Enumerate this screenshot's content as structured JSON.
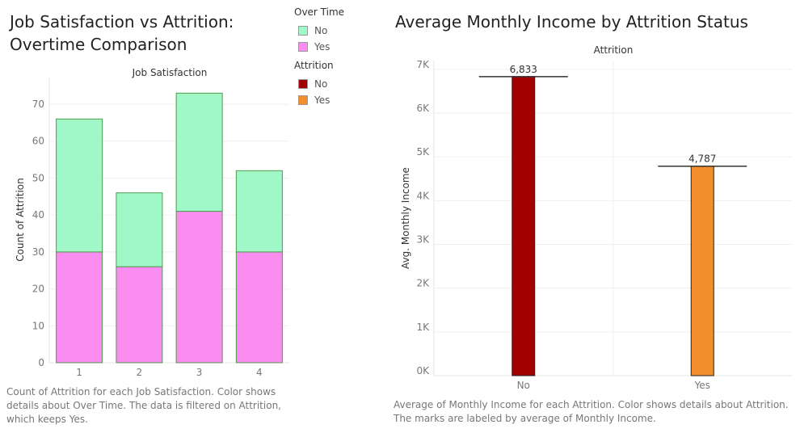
{
  "left_title": "Job Satisfaction vs Attrition: Overtime Comparison",
  "right_title": "Average Monthly Income by Attrition Status",
  "left_caption": "Count of Attrition for each Job Satisfaction.  Color shows details about Over Time. The data is filtered on Attrition, which keeps Yes.",
  "right_caption": "Average of Monthly Income for each Attrition.  Color shows details about Attrition.  The marks are labeled by average of Monthly Income.",
  "legend": {
    "overtime": {
      "title": "Over Time",
      "items": [
        {
          "label": "No",
          "color": "#a0f7c8"
        },
        {
          "label": "Yes",
          "color": "#fb8cf0"
        }
      ]
    },
    "attrition": {
      "title": "Attrition",
      "items": [
        {
          "label": "No",
          "color": "#a30000"
        },
        {
          "label": "Yes",
          "color": "#f28e2b"
        }
      ]
    }
  },
  "chart_data": [
    {
      "type": "bar",
      "stacked": true,
      "header": "Job Satisfaction",
      "ylabel": "Count of Attrition",
      "categories": [
        "1",
        "2",
        "3",
        "4"
      ],
      "series": [
        {
          "name": "Yes",
          "values": [
            30,
            26,
            41,
            30
          ],
          "color": "#fb8cf0"
        },
        {
          "name": "No",
          "values": [
            36,
            20,
            32,
            22
          ],
          "color": "#a0f7c8"
        }
      ],
      "yticks": [
        0,
        10,
        20,
        30,
        40,
        50,
        60,
        70
      ],
      "ylim": [
        0,
        77
      ],
      "grid": true
    },
    {
      "type": "bar",
      "header": "Attrition",
      "ylabel": "Avg. Monthly Income",
      "categories": [
        "No",
        "Yes"
      ],
      "values": [
        6833,
        4787
      ],
      "data_labels": [
        "6,833",
        "4,787"
      ],
      "colors": [
        "#a30000",
        "#f28e2b"
      ],
      "yticks": [
        0,
        1000,
        2000,
        3000,
        4000,
        5000,
        6000,
        7000
      ],
      "ytick_labels": [
        "0K",
        "1K",
        "2K",
        "3K",
        "4K",
        "5K",
        "6K",
        "7K"
      ],
      "ylim": [
        0,
        7200
      ],
      "reference_line": "average",
      "grid": true
    }
  ]
}
